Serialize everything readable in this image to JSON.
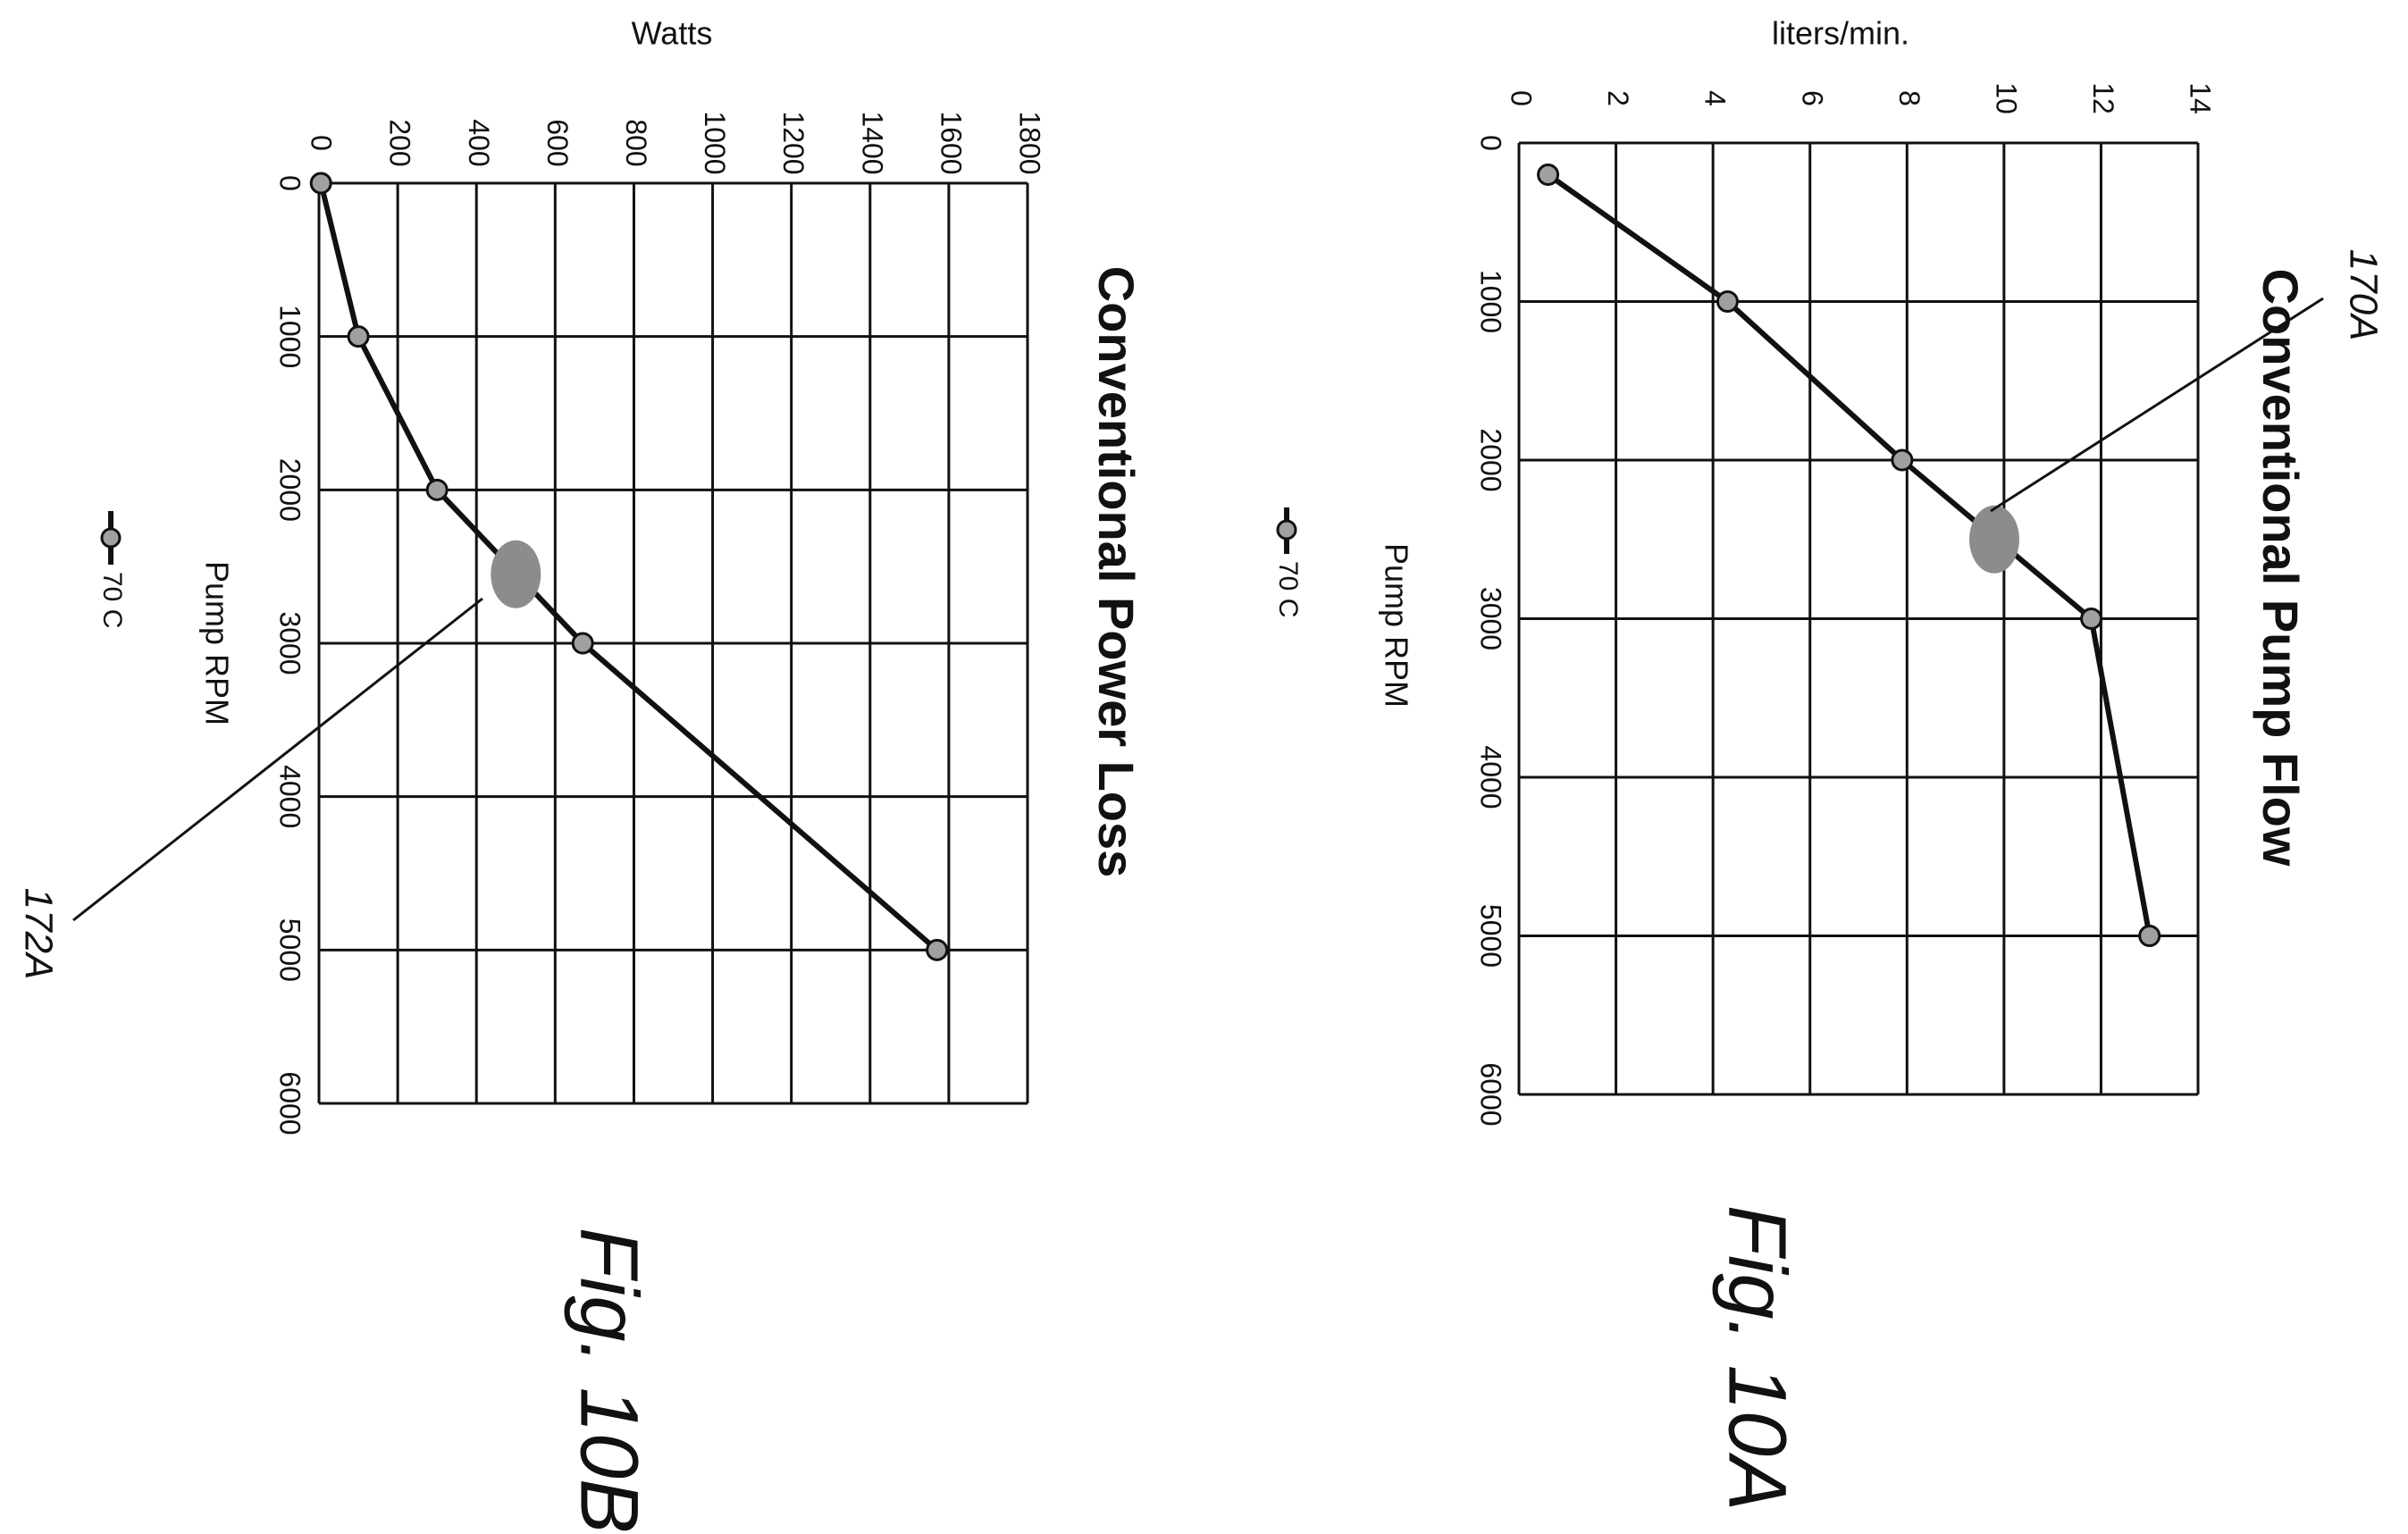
{
  "colors": {
    "line": "#111111",
    "marker": "#a0a0a0",
    "highlight": "#8c8c8c",
    "background": "#ffffff"
  },
  "chart_data": [
    {
      "type": "line",
      "title": "Conventional Pump Flow",
      "xlabel": "Pump RPM",
      "ylabel": "liters/min.",
      "xlim": [
        0,
        6000
      ],
      "ylim": [
        0,
        14
      ],
      "x_ticks": [
        "0",
        "1000",
        "2000",
        "3000",
        "4000",
        "5000",
        "6000"
      ],
      "y_ticks": [
        "0",
        "2",
        "4",
        "6",
        "8",
        "10",
        "12",
        "14"
      ],
      "grid": true,
      "legend_position": "bottom",
      "series": [
        {
          "name": "70 C",
          "x": [
            200,
            1000,
            2000,
            3000,
            5000
          ],
          "values": [
            0.6,
            4.3,
            7.9,
            11.8,
            13.0
          ]
        }
      ],
      "highlight": {
        "x": 2500,
        "y": 9.8
      },
      "figure_label": "Fig. 10A",
      "reference_label": "170A"
    },
    {
      "type": "line",
      "title": "Conventional Power Loss",
      "xlabel": "Pump RPM",
      "ylabel": "Watts",
      "xlim": [
        0,
        6000
      ],
      "ylim": [
        0,
        1800
      ],
      "x_ticks": [
        "0",
        "1000",
        "2000",
        "3000",
        "4000",
        "5000",
        "6000"
      ],
      "y_ticks": [
        "0",
        "200",
        "400",
        "600",
        "800",
        "1000",
        "1200",
        "1400",
        "1600",
        "1800"
      ],
      "grid": true,
      "legend_position": "bottom",
      "series": [
        {
          "name": "70 C",
          "x": [
            0,
            1000,
            2000,
            3000,
            5000
          ],
          "values": [
            5,
            100,
            300,
            670,
            1570
          ]
        }
      ],
      "highlight": {
        "x": 2550,
        "y": 500
      },
      "figure_label": "Fig. 10B",
      "reference_label": "172A"
    }
  ]
}
